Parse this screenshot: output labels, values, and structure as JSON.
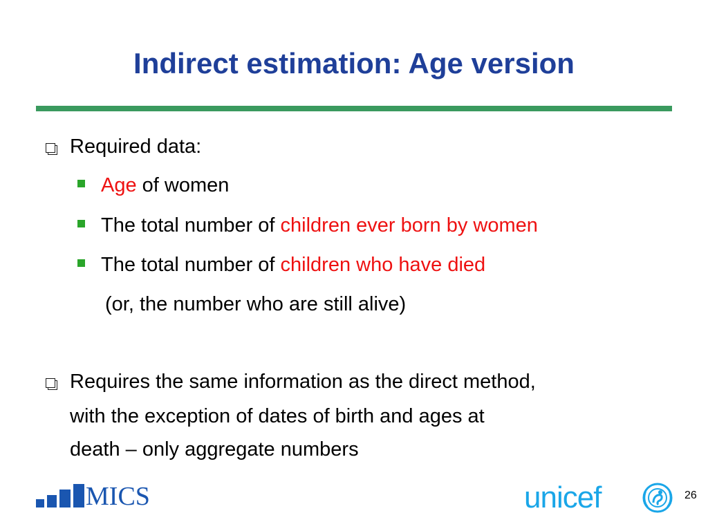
{
  "slide": {
    "title": "Indirect estimation: Age version",
    "accent_rule_color": "#3a9a5e",
    "title_color": "#1f3f99",
    "highlight_color": "#ee1111"
  },
  "bullets": {
    "b1": {
      "text": "Required data:"
    },
    "b1_sub1": {
      "hl": "Age",
      "rest": " of women"
    },
    "b1_sub2": {
      "pre": "The total number of ",
      "hl": "children ever born by women"
    },
    "b1_sub3": {
      "pre": "The total number of ",
      "hl": "children who have died"
    },
    "b1_note": "(or, the number who are still alive)",
    "b2": {
      "line1": "Requires the same information as the direct method,",
      "line2": "with the exception of dates of birth and ages at",
      "line3": "death – only aggregate numbers"
    }
  },
  "footer": {
    "mics_logo_text": "MICS",
    "unicef_logo_text": "unicef",
    "page_number": "26"
  }
}
